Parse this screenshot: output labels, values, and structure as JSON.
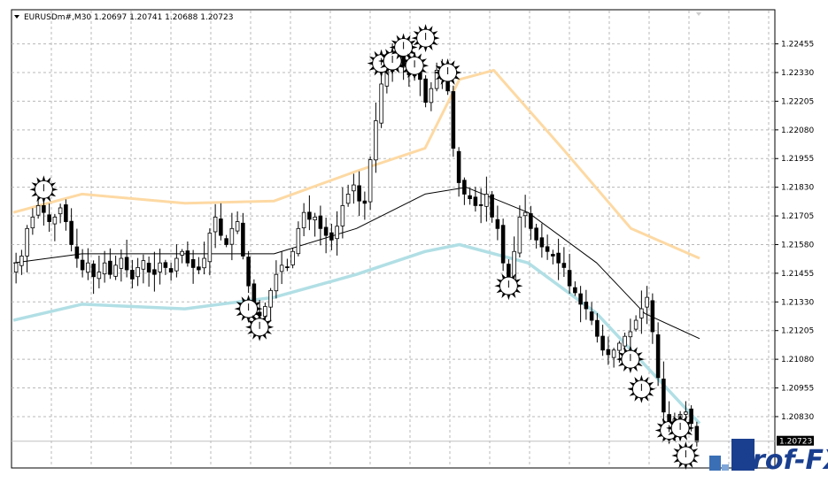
{
  "header": {
    "symbol_info": "EURUSDm#,M30  1.20697 1.20741 1.20688 1.20723"
  },
  "watermark": {
    "text": "Prof-FX"
  },
  "current_price_label": "1.20723",
  "chart_data": {
    "type": "candlestick",
    "symbol": "EURUSDm#",
    "timeframe": "M30",
    "ohlc_header": {
      "open": 1.20697,
      "high": 1.20741,
      "low": 1.20688,
      "close": 1.20723
    },
    "current_price": 1.20723,
    "y_ticks": [
      "1.22455",
      "1.22330",
      "1.22205",
      "1.22080",
      "1.21955",
      "1.21830",
      "1.21705",
      "1.21580",
      "1.21455",
      "1.21330",
      "1.21205",
      "1.21080",
      "1.20955",
      "1.20830"
    ],
    "ylim": [
      1.2061,
      1.226
    ],
    "grid": true,
    "close_path": [
      1.215,
      1.2153,
      1.2165,
      1.217,
      1.2175,
      1.2172,
      1.2168,
      1.217,
      1.2174,
      1.2168,
      1.2158,
      1.2152,
      1.2147,
      1.215,
      1.2144,
      1.2146,
      1.215,
      1.2145,
      1.2149,
      1.2152,
      1.2147,
      1.2143,
      1.2148,
      1.2151,
      1.2146,
      1.2145,
      1.215,
      1.2148,
      1.2146,
      1.2152,
      1.2155,
      1.215,
      1.2148,
      1.2147,
      1.2152,
      1.2163,
      1.217,
      1.2162,
      1.2158,
      1.2165,
      1.2168,
      1.2153,
      1.214,
      1.213,
      1.2127,
      1.2131,
      1.2138,
      1.2145,
      1.2149,
      1.2148,
      1.2155,
      1.2165,
      1.2172,
      1.2169,
      1.217,
      1.2165,
      1.2162,
      1.216,
      1.2166,
      1.2175,
      1.218,
      1.2184,
      1.2177,
      1.2176,
      1.2195,
      1.2212,
      1.2228,
      1.2235,
      1.2238,
      1.224,
      1.2236,
      1.2232,
      1.2235,
      1.223,
      1.222,
      1.2226,
      1.2234,
      1.223,
      1.2225,
      1.22,
      1.2185,
      1.218,
      1.2178,
      1.2175,
      1.2175,
      1.218,
      1.217,
      1.2165,
      1.215,
      1.2142,
      1.2155,
      1.217,
      1.2172,
      1.2165,
      1.216,
      1.2157,
      1.2155,
      1.2153,
      1.215,
      1.2148,
      1.214,
      1.2137,
      1.2132,
      1.213,
      1.2125,
      1.2118,
      1.2112,
      1.211,
      1.2112,
      1.2115,
      1.2118,
      1.212,
      1.2125,
      1.213,
      1.2135,
      1.212,
      1.21,
      1.2085,
      1.208,
      1.2082,
      1.2084,
      1.2085,
      1.208,
      1.2072
    ],
    "moving_averages": [
      {
        "color": "#000000",
        "points": [
          [
            0,
            1.215
          ],
          [
            0.1,
            1.2154
          ],
          [
            0.25,
            1.2154
          ],
          [
            0.38,
            1.2154
          ],
          [
            0.5,
            1.2165
          ],
          [
            0.6,
            1.218
          ],
          [
            0.66,
            1.2183
          ],
          [
            0.75,
            1.2172
          ],
          [
            0.85,
            1.215
          ],
          [
            0.92,
            1.2128
          ],
          [
            1.0,
            1.2117
          ]
        ]
      },
      {
        "color": "#fdd9a3",
        "points": [
          [
            0,
            1.2172
          ],
          [
            0.1,
            1.218
          ],
          [
            0.25,
            1.2176
          ],
          [
            0.38,
            1.2177
          ],
          [
            0.5,
            1.219
          ],
          [
            0.6,
            1.22
          ],
          [
            0.65,
            1.223
          ],
          [
            0.7,
            1.2234
          ],
          [
            0.8,
            1.22
          ],
          [
            0.9,
            1.2165
          ],
          [
            1.0,
            1.2152
          ]
        ]
      },
      {
        "color": "#b1dfe5",
        "points": [
          [
            0,
            1.2125
          ],
          [
            0.1,
            1.2132
          ],
          [
            0.25,
            1.213
          ],
          [
            0.38,
            1.2135
          ],
          [
            0.5,
            1.2145
          ],
          [
            0.6,
            1.2155
          ],
          [
            0.65,
            1.2158
          ],
          [
            0.75,
            1.215
          ],
          [
            0.85,
            1.2128
          ],
          [
            0.95,
            1.2096
          ],
          [
            1.0,
            1.208
          ]
        ]
      }
    ],
    "signals": [
      {
        "i": 5,
        "price": 1.2182
      },
      {
        "i": 42,
        "price": 1.213
      },
      {
        "i": 44,
        "price": 1.2122
      },
      {
        "i": 66,
        "price": 1.2237
      },
      {
        "i": 68,
        "price": 1.2238
      },
      {
        "i": 70,
        "price": 1.2244
      },
      {
        "i": 72,
        "price": 1.2236
      },
      {
        "i": 74,
        "price": 1.2248
      },
      {
        "i": 78,
        "price": 1.2233
      },
      {
        "i": 89,
        "price": 1.214
      },
      {
        "i": 111,
        "price": 1.2108
      },
      {
        "i": 113,
        "price": 1.2095
      },
      {
        "i": 118,
        "price": 1.2077
      },
      {
        "i": 120,
        "price": 1.2078
      },
      {
        "i": 121,
        "price": 1.2066
      }
    ]
  }
}
